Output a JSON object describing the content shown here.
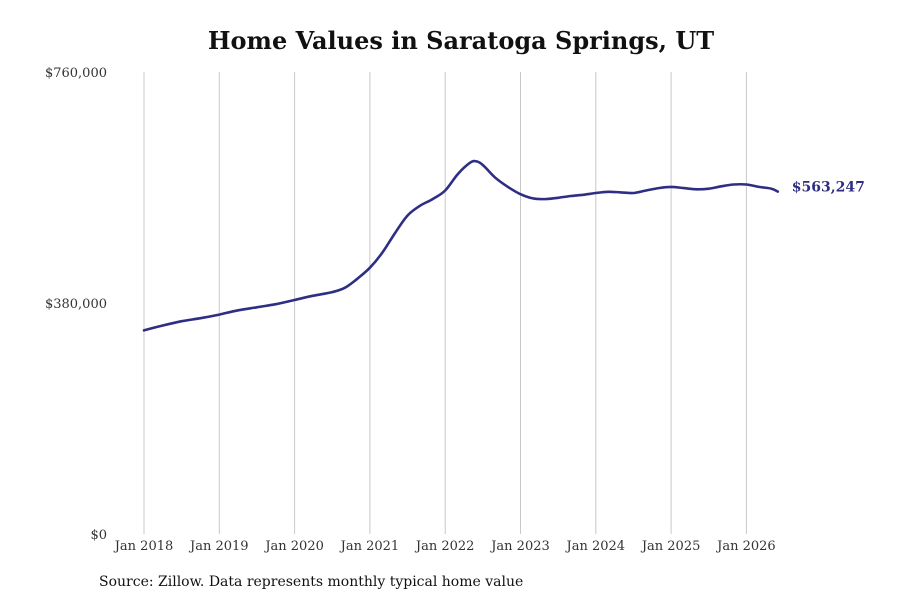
{
  "chart_data": {
    "type": "line",
    "title": "Home Values in Saratoga Springs, UT",
    "y_ticks": [
      "$760,000",
      "$380,000",
      "$0"
    ],
    "y_tick_values": [
      760000,
      380000,
      0
    ],
    "ylim": [
      0,
      760000
    ],
    "x_ticks": [
      "Jan 2018",
      "Jan 2019",
      "Jan 2020",
      "Jan 2021",
      "Jan 2022",
      "Jan 2023",
      "Jan 2024",
      "Jan 2025",
      "Jan 2026"
    ],
    "x_tick_values": [
      "2018-01",
      "2019-01",
      "2020-01",
      "2021-01",
      "2022-01",
      "2023-01",
      "2024-01",
      "2025-01",
      "2026-01"
    ],
    "grid": "vertical",
    "series": [
      {
        "color": "#2e2e85",
        "points": [
          [
            "2018-01",
            335000
          ],
          [
            "2018-04",
            343000
          ],
          [
            "2018-07",
            350000
          ],
          [
            "2018-10",
            355000
          ],
          [
            "2019-01",
            361000
          ],
          [
            "2019-04",
            368000
          ],
          [
            "2019-07",
            373000
          ],
          [
            "2019-10",
            378000
          ],
          [
            "2020-01",
            385000
          ],
          [
            "2020-04",
            392000
          ],
          [
            "2020-07",
            398000
          ],
          [
            "2020-09",
            405000
          ],
          [
            "2020-11",
            420000
          ],
          [
            "2021-01",
            438000
          ],
          [
            "2021-03",
            463000
          ],
          [
            "2021-05",
            495000
          ],
          [
            "2021-07",
            524000
          ],
          [
            "2021-09",
            540000
          ],
          [
            "2021-11",
            551000
          ],
          [
            "2022-01",
            565000
          ],
          [
            "2022-03",
            592000
          ],
          [
            "2022-05",
            611000
          ],
          [
            "2022-06",
            613000
          ],
          [
            "2022-07",
            607000
          ],
          [
            "2022-09",
            586000
          ],
          [
            "2022-11",
            571000
          ],
          [
            "2023-01",
            559000
          ],
          [
            "2023-03",
            552000
          ],
          [
            "2023-05",
            551000
          ],
          [
            "2023-07",
            553000
          ],
          [
            "2023-09",
            556000
          ],
          [
            "2023-11",
            558000
          ],
          [
            "2024-01",
            561000
          ],
          [
            "2024-03",
            563000
          ],
          [
            "2024-05",
            562000
          ],
          [
            "2024-07",
            561000
          ],
          [
            "2024-09",
            565000
          ],
          [
            "2024-11",
            569000
          ],
          [
            "2025-01",
            571000
          ],
          [
            "2025-03",
            569000
          ],
          [
            "2025-05",
            567000
          ],
          [
            "2025-07",
            568000
          ],
          [
            "2025-09",
            572000
          ],
          [
            "2025-11",
            575000
          ],
          [
            "2026-01",
            575000
          ],
          [
            "2026-03",
            571000
          ],
          [
            "2026-05",
            568000
          ],
          [
            "2026-06",
            563247
          ]
        ]
      }
    ],
    "end_label": "$563,247"
  },
  "footer": {
    "source": "Source: Zillow. Data represents monthly typical home value"
  }
}
